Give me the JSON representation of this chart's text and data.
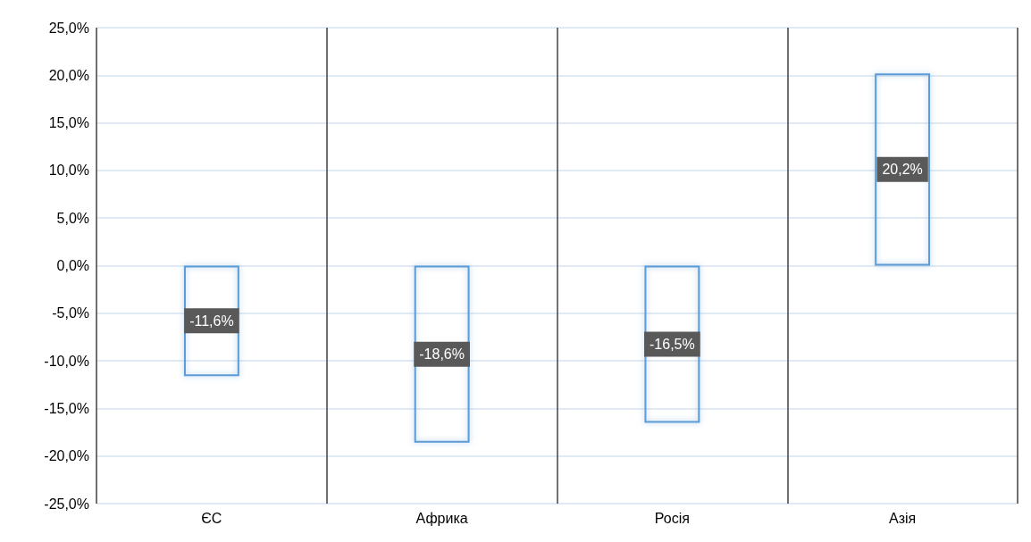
{
  "chart_data": {
    "type": "bar",
    "categories": [
      "ЄС",
      "Африка",
      "Росія",
      "Азія"
    ],
    "values": [
      -11.6,
      -18.6,
      -16.5,
      20.2
    ],
    "value_labels": [
      "-11,6%",
      "-18,6%",
      "-16,5%",
      "20,2%"
    ],
    "color": "#5b9bd5",
    "ylim": [
      -25,
      25
    ],
    "yticks": [
      {
        "value": -25,
        "label": "-25,0%"
      },
      {
        "value": -20,
        "label": "-20,0%"
      },
      {
        "value": -15,
        "label": "-15,0%"
      },
      {
        "value": -10,
        "label": "-10,0%"
      },
      {
        "value": -5,
        "label": "-5,0%"
      },
      {
        "value": 0,
        "label": "0,0%"
      },
      {
        "value": 5,
        "label": "5,0%"
      },
      {
        "value": 10,
        "label": "10,0%"
      },
      {
        "value": 15,
        "label": "15,0%"
      },
      {
        "value": 20,
        "label": "20,0%"
      },
      {
        "value": 25,
        "label": "25,0%"
      }
    ],
    "grid": true
  }
}
